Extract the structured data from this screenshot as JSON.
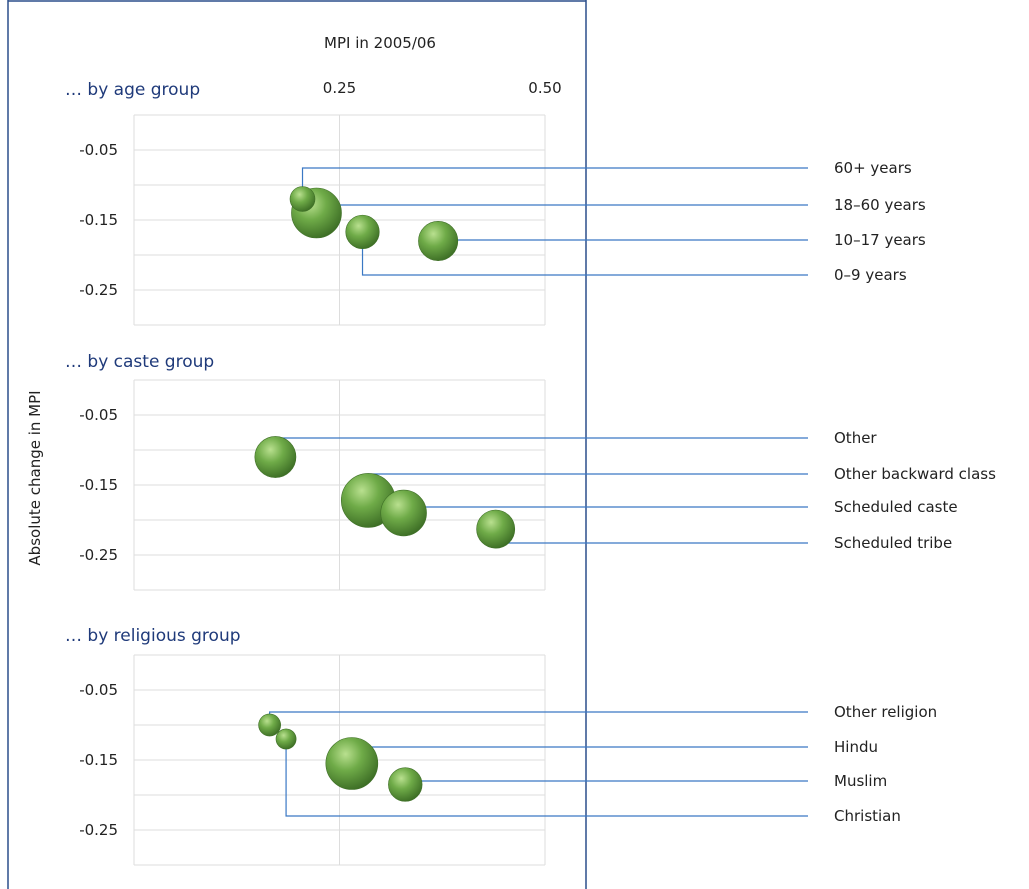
{
  "colors": {
    "frame": "#2b4f8c",
    "leader": "#3a78c4",
    "grid": "#dddddd",
    "bubble": "#5c9a3c",
    "bubble_light": "#a8d57e",
    "bubble_dark": "#3e6f26",
    "panel_title": "#1f3a7a"
  },
  "chart_data": {
    "type": "scatter",
    "subtype": "bubble",
    "x_axis_title": "MPI in 2005/06",
    "y_axis_title": "Absolute change in MPI",
    "x_ticks": [
      "0.25",
      "0.50"
    ],
    "x_tick_values": [
      0.25,
      0.5
    ],
    "xlim": [
      0.0,
      0.5
    ],
    "ylim": [
      -0.3,
      0.0
    ],
    "y_ticks": [
      "-0.05",
      "-0.15",
      "-0.25"
    ],
    "y_tick_values": [
      -0.05,
      -0.15,
      -0.25
    ],
    "grid": true,
    "panels": [
      {
        "title": "… by age group",
        "points": [
          {
            "label": "60+ years",
            "x": 0.205,
            "y": -0.12,
            "size": 0.25
          },
          {
            "label": "18–60 years",
            "x": 0.222,
            "y": -0.14,
            "size": 1.0
          },
          {
            "label": "10–17 years",
            "x": 0.37,
            "y": -0.18,
            "size": 0.62
          },
          {
            "label": "0–9 years",
            "x": 0.278,
            "y": -0.167,
            "size": 0.45
          }
        ]
      },
      {
        "title": "… by caste group",
        "points": [
          {
            "label": "Other",
            "x": 0.172,
            "y": -0.11,
            "size": 0.58
          },
          {
            "label": "Other backward class",
            "x": 0.285,
            "y": -0.172,
            "size": 1.0
          },
          {
            "label": "Scheduled caste",
            "x": 0.328,
            "y": -0.19,
            "size": 0.72
          },
          {
            "label": "Scheduled tribe",
            "x": 0.44,
            "y": -0.213,
            "size": 0.5
          }
        ]
      },
      {
        "title": "… by religious group",
        "points": [
          {
            "label": "Other religion",
            "x": 0.165,
            "y": -0.1,
            "size": 0.18
          },
          {
            "label": "Hindu",
            "x": 0.265,
            "y": -0.155,
            "size": 1.0
          },
          {
            "label": "Muslim",
            "x": 0.33,
            "y": -0.185,
            "size": 0.42
          },
          {
            "label": "Christian",
            "x": 0.185,
            "y": -0.12,
            "size": 0.15
          }
        ]
      }
    ]
  }
}
